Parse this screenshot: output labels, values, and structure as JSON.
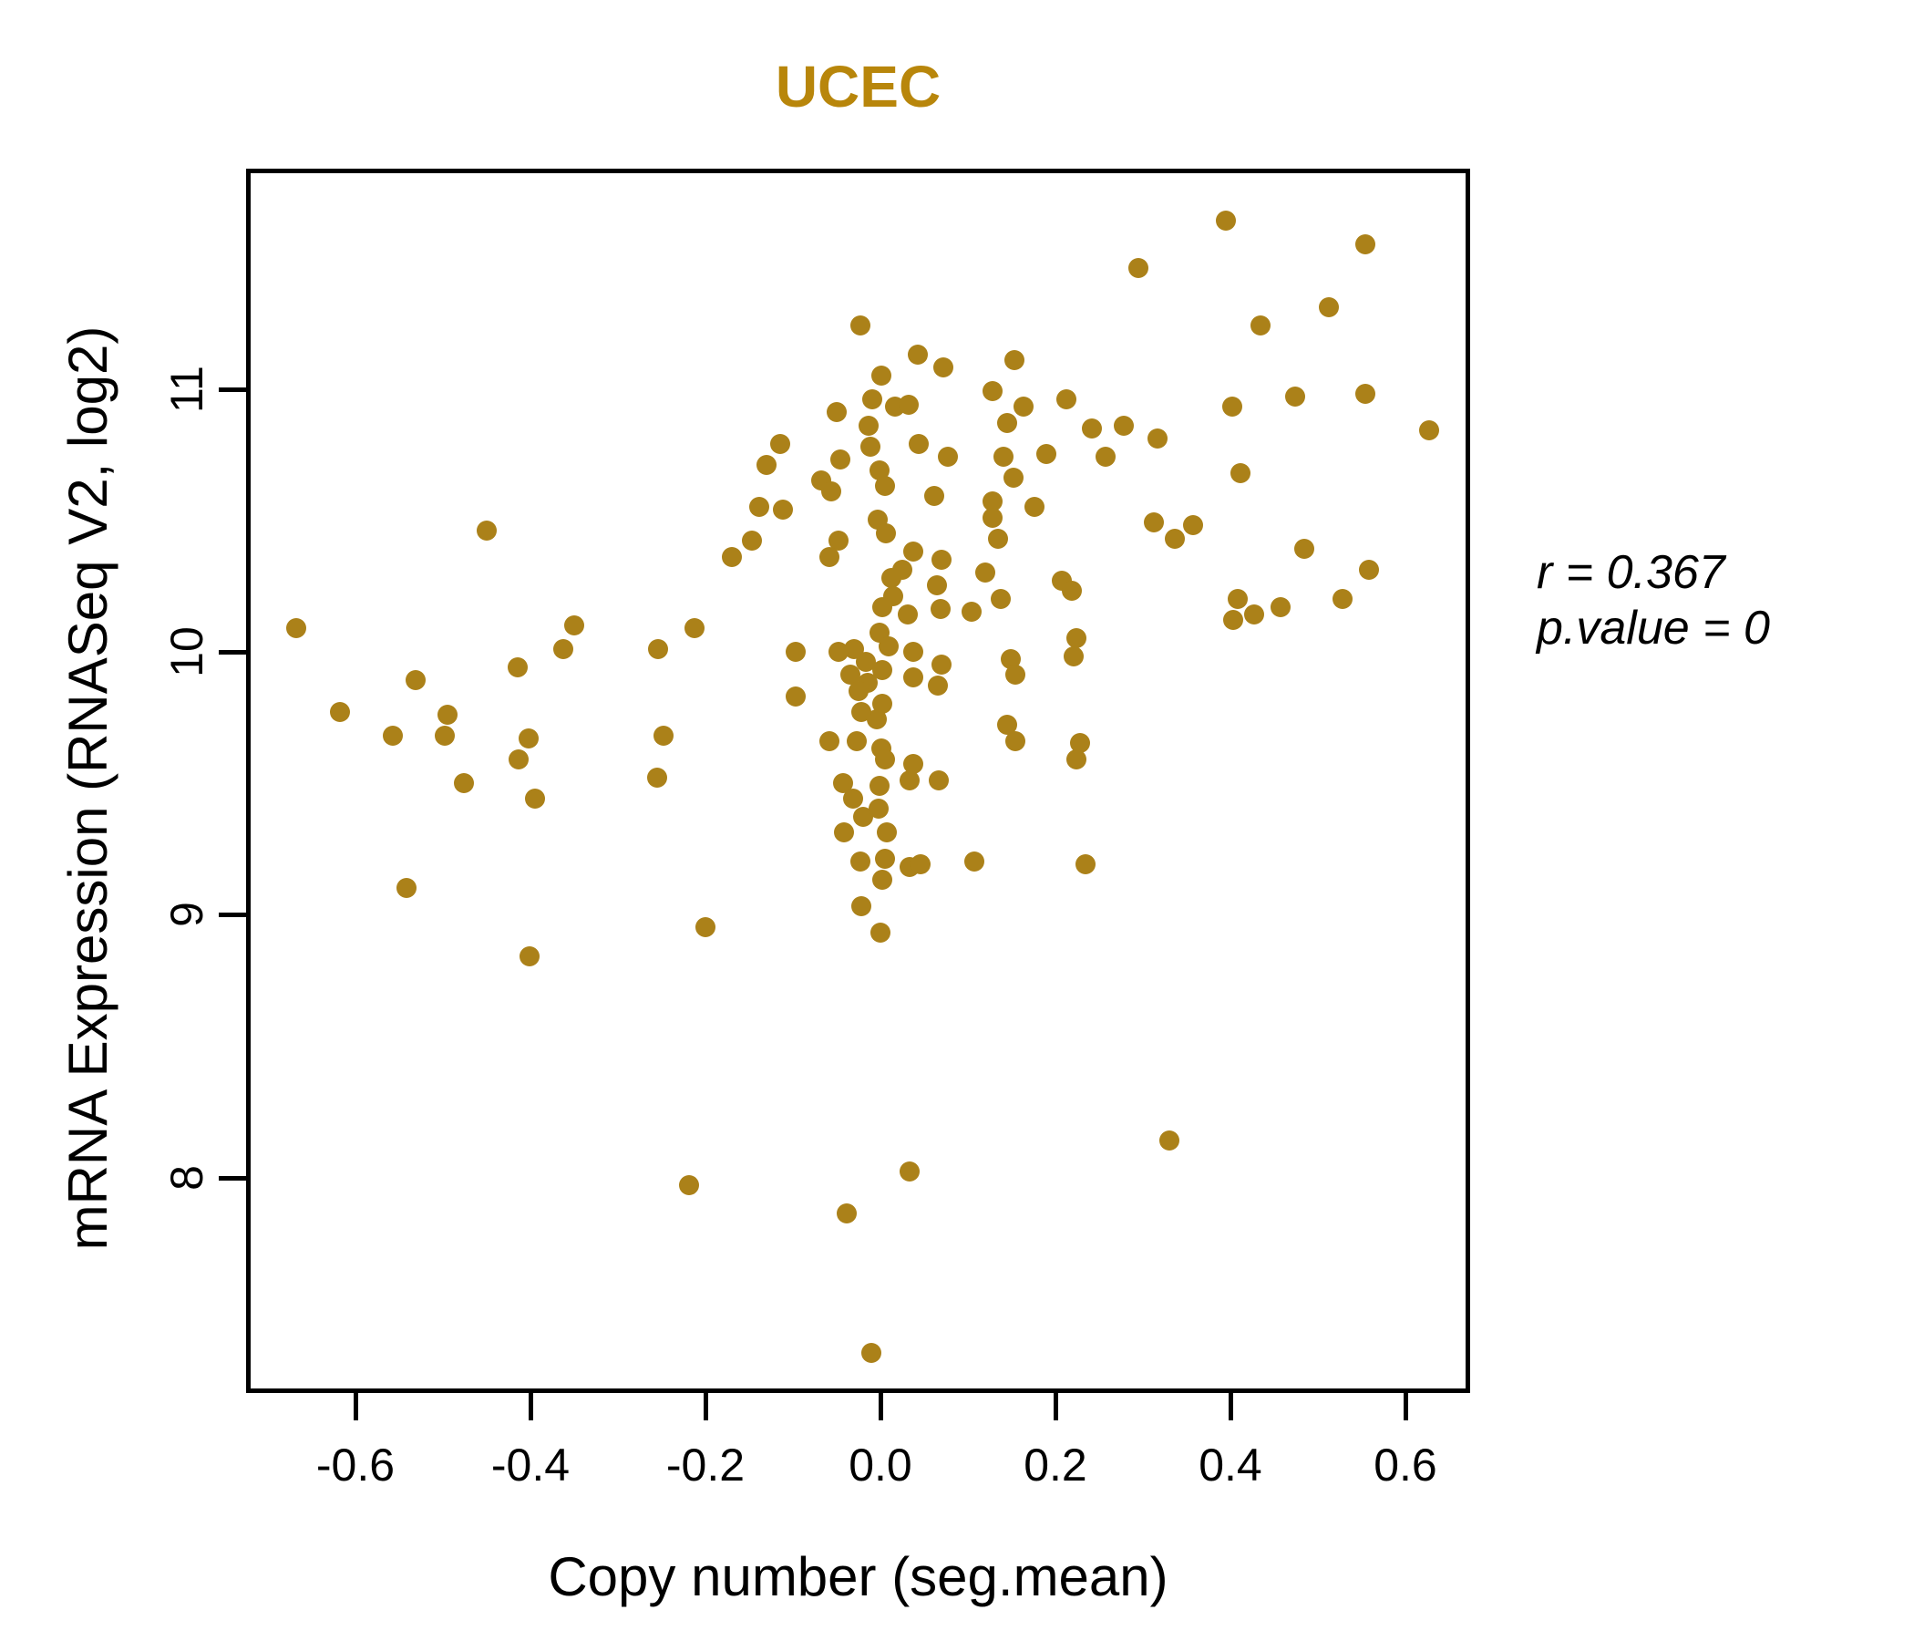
{
  "title": "UCEC",
  "colors": {
    "title": "#B8860B",
    "point": "#AB8119",
    "axis": "#000000",
    "background": "#FFFFFF"
  },
  "annotation": {
    "line1": "r = 0.367",
    "line2": "p.value = 0"
  },
  "chart_data": {
    "type": "scatter",
    "title": "UCEC",
    "xlabel": "Copy number (seg.mean)",
    "ylabel": "mRNA Expression (RNASeq V2, log2)",
    "xlim": [
      -0.725,
      0.674
    ],
    "ylim": [
      7.18,
      11.84
    ],
    "x_ticks": [
      -0.6,
      -0.4,
      -0.2,
      0.0,
      0.2,
      0.4,
      0.6
    ],
    "x_tick_labels": [
      "-0.6",
      "-0.4",
      "-0.2",
      "0.0",
      "0.2",
      "0.4",
      "0.6"
    ],
    "y_ticks": [
      8,
      9,
      10,
      11
    ],
    "y_tick_labels": [
      "8",
      "9",
      "10",
      "11"
    ],
    "grid": false,
    "legend": null,
    "point_radius_px": 11,
    "annotations": [
      "r = 0.367",
      "p.value = 0"
    ],
    "points": [
      [
        -0.455,
        10.48
      ],
      [
        -0.673,
        10.11
      ],
      [
        -0.355,
        10.12
      ],
      [
        -0.368,
        10.03
      ],
      [
        -0.42,
        9.96
      ],
      [
        -0.536,
        9.91
      ],
      [
        -0.623,
        9.79
      ],
      [
        -0.5,
        9.78
      ],
      [
        -0.562,
        9.7
      ],
      [
        -0.503,
        9.7
      ],
      [
        -0.407,
        9.69
      ],
      [
        -0.419,
        9.61
      ],
      [
        -0.481,
        9.52
      ],
      [
        -0.259,
        10.03
      ],
      [
        -0.218,
        10.11
      ],
      [
        -0.253,
        9.7
      ],
      [
        -0.26,
        9.54
      ],
      [
        -0.12,
        10.81
      ],
      [
        -0.135,
        10.73
      ],
      [
        -0.073,
        10.67
      ],
      [
        -0.061,
        10.63
      ],
      [
        -0.144,
        10.57
      ],
      [
        -0.117,
        10.56
      ],
      [
        -0.152,
        10.44
      ],
      [
        -0.175,
        10.38
      ],
      [
        -0.102,
        10.02
      ],
      [
        -0.102,
        9.85
      ],
      [
        -0.4,
        9.46
      ],
      [
        -0.547,
        9.12
      ],
      [
        -0.205,
        8.97
      ],
      [
        -0.406,
        8.86
      ],
      [
        -0.224,
        7.99
      ],
      [
        -0.044,
        7.88
      ],
      [
        0.038,
        11.15
      ],
      [
        0.067,
        11.1
      ],
      [
        -0.004,
        11.07
      ],
      [
        -0.015,
        10.98
      ],
      [
        0.011,
        10.95
      ],
      [
        0.027,
        10.96
      ],
      [
        -0.055,
        10.93
      ],
      [
        -0.019,
        10.88
      ],
      [
        -0.017,
        10.8
      ],
      [
        0.039,
        10.81
      ],
      [
        0.072,
        10.76
      ],
      [
        -0.051,
        10.75
      ],
      [
        -0.006,
        10.71
      ],
      [
        0.0,
        10.65
      ],
      [
        -0.008,
        10.52
      ],
      [
        0.001,
        10.47
      ],
      [
        -0.053,
        10.44
      ],
      [
        -0.064,
        10.38
      ],
      [
        0.032,
        10.4
      ],
      [
        0.065,
        10.37
      ],
      [
        0.02,
        10.33
      ],
      [
        0.007,
        10.3
      ],
      [
        0.115,
        10.32
      ],
      [
        0.009,
        10.23
      ],
      [
        -0.003,
        10.19
      ],
      [
        0.059,
        10.27
      ],
      [
        -0.006,
        10.09
      ],
      [
        0.004,
        10.04
      ],
      [
        -0.035,
        10.03
      ],
      [
        -0.053,
        10.02
      ],
      [
        -0.022,
        9.98
      ],
      [
        -0.003,
        9.95
      ],
      [
        -0.04,
        9.93
      ],
      [
        -0.02,
        9.9
      ],
      [
        -0.03,
        9.87
      ],
      [
        0.032,
        10.02
      ],
      [
        0.065,
        9.97
      ],
      [
        -0.003,
        9.82
      ],
      [
        -0.009,
        9.76
      ],
      [
        -0.027,
        9.79
      ],
      [
        -0.064,
        9.68
      ],
      [
        -0.032,
        9.68
      ],
      [
        -0.004,
        9.65
      ],
      [
        0.0,
        9.61
      ],
      [
        -0.048,
        9.52
      ],
      [
        -0.006,
        9.51
      ],
      [
        0.028,
        9.53
      ],
      [
        -0.025,
        9.39
      ],
      [
        -0.007,
        9.42
      ],
      [
        -0.036,
        9.46
      ],
      [
        0.002,
        9.33
      ],
      [
        -0.047,
        9.33
      ],
      [
        0.0,
        9.23
      ],
      [
        -0.028,
        9.22
      ],
      [
        -0.003,
        9.15
      ],
      [
        0.028,
        9.2
      ],
      [
        0.041,
        9.21
      ],
      [
        -0.027,
        9.05
      ],
      [
        -0.005,
        8.95
      ],
      [
        0.39,
        11.66
      ],
      [
        0.549,
        11.57
      ],
      [
        0.29,
        11.48
      ],
      [
        0.507,
        11.33
      ],
      [
        0.429,
        11.26
      ],
      [
        -0.028,
        11.26
      ],
      [
        0.148,
        11.13
      ],
      [
        0.123,
        11.01
      ],
      [
        0.207,
        10.98
      ],
      [
        0.469,
        10.99
      ],
      [
        0.397,
        10.95
      ],
      [
        0.549,
        11.0
      ],
      [
        0.158,
        10.95
      ],
      [
        0.14,
        10.89
      ],
      [
        0.622,
        10.86
      ],
      [
        0.237,
        10.87
      ],
      [
        0.273,
        10.88
      ],
      [
        0.312,
        10.83
      ],
      [
        0.252,
        10.76
      ],
      [
        0.184,
        10.77
      ],
      [
        0.135,
        10.76
      ],
      [
        0.406,
        10.7
      ],
      [
        0.147,
        10.68
      ],
      [
        0.056,
        10.61
      ],
      [
        0.123,
        10.59
      ],
      [
        0.123,
        10.53
      ],
      [
        0.171,
        10.57
      ],
      [
        0.129,
        10.45
      ],
      [
        0.307,
        10.51
      ],
      [
        0.352,
        10.5
      ],
      [
        0.331,
        10.45
      ],
      [
        0.479,
        10.41
      ],
      [
        0.553,
        10.33
      ],
      [
        0.202,
        10.29
      ],
      [
        0.214,
        10.25
      ],
      [
        0.132,
        10.22
      ],
      [
        0.403,
        10.22
      ],
      [
        0.422,
        10.16
      ],
      [
        0.398,
        10.14
      ],
      [
        0.452,
        10.19
      ],
      [
        0.523,
        10.22
      ],
      [
        0.099,
        10.17
      ],
      [
        0.064,
        10.18
      ],
      [
        0.026,
        10.16
      ],
      [
        0.219,
        10.07
      ],
      [
        0.216,
        10.0
      ],
      [
        0.144,
        9.99
      ],
      [
        0.149,
        9.93
      ],
      [
        0.06,
        9.89
      ],
      [
        0.032,
        9.92
      ],
      [
        0.14,
        9.74
      ],
      [
        0.149,
        9.68
      ],
      [
        0.062,
        9.53
      ],
      [
        0.223,
        9.67
      ],
      [
        0.219,
        9.61
      ],
      [
        0.032,
        9.59
      ],
      [
        0.102,
        9.22
      ],
      [
        0.229,
        9.21
      ],
      [
        0.325,
        8.16
      ],
      [
        0.028,
        8.04
      ],
      [
        -0.016,
        7.35
      ]
    ]
  }
}
